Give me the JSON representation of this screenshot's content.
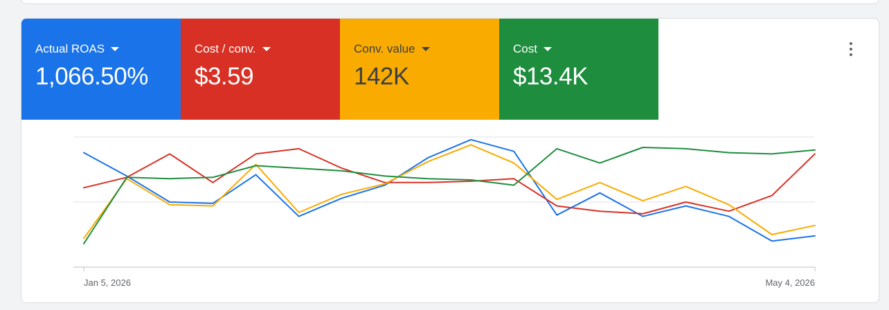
{
  "metrics": [
    {
      "label": "Actual ROAS",
      "value": "1,066.50%",
      "color": "#1a73e8",
      "text_color": "#ffffff"
    },
    {
      "label": "Cost / conv.",
      "value": "$3.59",
      "color": "#d93025",
      "text_color": "#ffffff"
    },
    {
      "label": "Conv. value",
      "value": "142K",
      "color": "#f9ab00",
      "text_color": "#3c4043"
    },
    {
      "label": "Cost",
      "value": "$13.4K",
      "color": "#1e8e3e",
      "text_color": "#ffffff"
    }
  ],
  "menu_icon": "more-vert-icon",
  "chart_data": {
    "type": "line",
    "x_tick_labels": [
      "Jan 5, 2026",
      "May 4, 2026"
    ],
    "grid": true,
    "ylim": [
      0,
      100
    ],
    "y_axis_labels_shown": false,
    "series": [
      {
        "color": "#1a73e8",
        "values": [
          88,
          70,
          50,
          49,
          71,
          39,
          53,
          63,
          84,
          98,
          89,
          40,
          57,
          39,
          47,
          39,
          20,
          24
        ]
      },
      {
        "color": "#d93025",
        "values": [
          61,
          69,
          87,
          65,
          87,
          91,
          76,
          65,
          65,
          66,
          68,
          47,
          43,
          41,
          50,
          43,
          55,
          87
        ]
      },
      {
        "color": "#f9ab00",
        "values": [
          22,
          68,
          48,
          47,
          79,
          42,
          56,
          64,
          81,
          94,
          80,
          52,
          65,
          51,
          62,
          48,
          25,
          32
        ]
      },
      {
        "color": "#1e8e3e",
        "values": [
          18,
          69,
          68,
          69,
          78,
          76,
          74,
          70,
          68,
          67,
          63,
          91,
          80,
          92,
          91,
          88,
          87,
          90
        ]
      }
    ]
  }
}
